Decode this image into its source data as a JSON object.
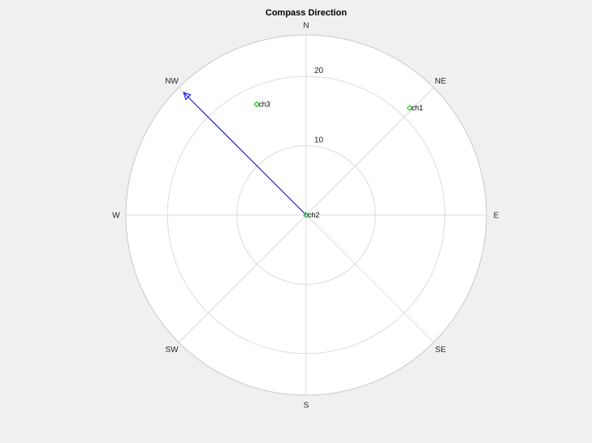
{
  "chart_data": {
    "type": "scatter",
    "projection": "polar-compass",
    "title": "Compass Direction",
    "directions": [
      "N",
      "NE",
      "E",
      "SE",
      "S",
      "SW",
      "W",
      "NW"
    ],
    "r_ticks": [
      10,
      20
    ],
    "r_tick_labels": [
      "10",
      "20"
    ],
    "r_max": 26,
    "grid": true,
    "points": [
      {
        "label": "ch1",
        "bearing_deg": 44,
        "r": 21.5
      },
      {
        "label": "ch2",
        "bearing_deg": 0,
        "r": 0
      },
      {
        "label": "ch3",
        "bearing_deg": -24,
        "r": 17.5
      }
    ],
    "arrow": {
      "bearing_deg": -45,
      "r": 25
    },
    "colors": {
      "points": "#00c000",
      "arrow": "#0000ff",
      "grid": "#dcdcdc",
      "axes_bg": "#ffffff",
      "figure_bg": "#f0f0f0"
    }
  }
}
